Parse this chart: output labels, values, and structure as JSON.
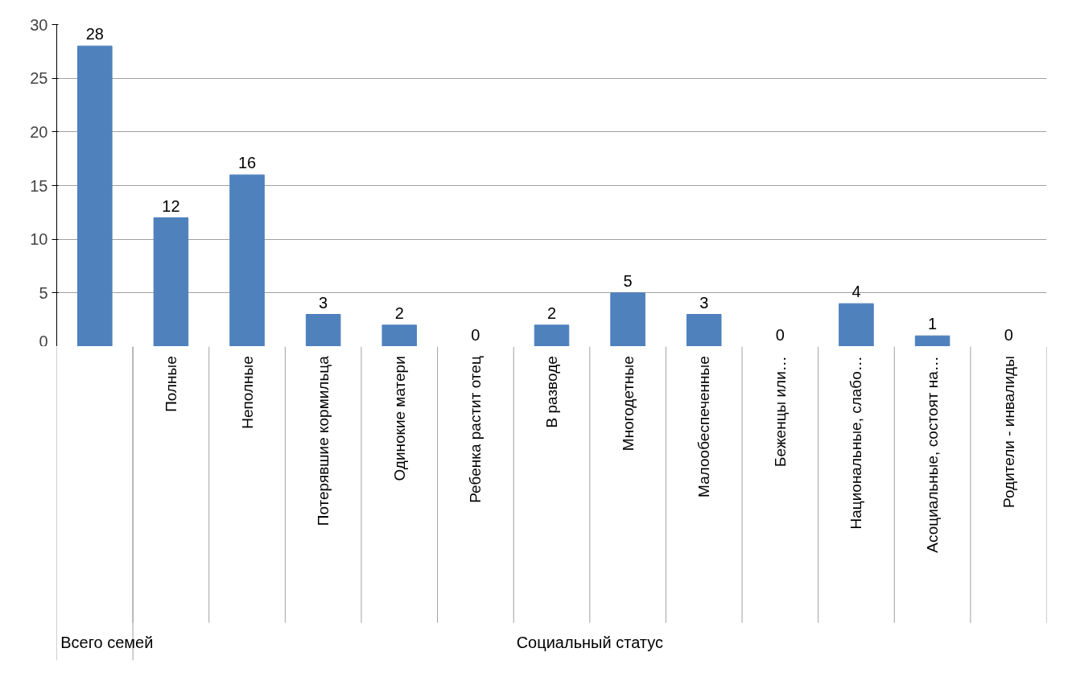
{
  "chart_data": {
    "type": "bar",
    "categories": [
      null,
      "Полные",
      "Неполные",
      "Потерявшие кормильца",
      "Одинокие матери",
      "Ребенка растит отец",
      "В разводе",
      "Многодетные",
      "Малообеспеченные",
      "Беженцы или…",
      "Национальные, слабо…",
      "Асоциальные, состоят на…",
      "Родители - инвалиды"
    ],
    "values": [
      28,
      12,
      16,
      3,
      2,
      0,
      2,
      5,
      3,
      0,
      4,
      1,
      0
    ],
    "color": "#4f81bd",
    "ylim": [
      0,
      30
    ],
    "yticks": [
      0,
      5,
      10,
      15,
      20,
      25,
      30
    ],
    "grid": "y",
    "data_labels": true,
    "annotations": [
      "Всего семей",
      "Социальный статус"
    ]
  }
}
